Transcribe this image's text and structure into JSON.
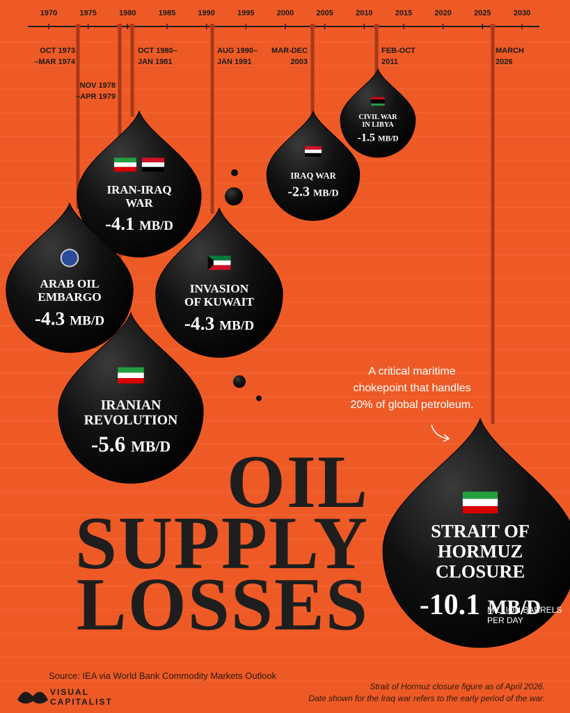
{
  "timeline": {
    "years": [
      1970,
      1975,
      1980,
      1985,
      1990,
      1995,
      2000,
      2005,
      2010,
      2015,
      2020,
      2025,
      2030
    ]
  },
  "events": [
    {
      "date": [
        "OCT 1973",
        "–MAR 1974"
      ],
      "name": [
        "ARAB OIL",
        "EMBARGO"
      ],
      "value": -4.3,
      "unit": "MB/D"
    },
    {
      "date": [
        "NOV 1978",
        "–APR 1979"
      ],
      "name": [
        "IRANIAN",
        "REVOLUTION"
      ],
      "value": -5.6,
      "unit": "MB/D"
    },
    {
      "date": [
        "OCT 1980–",
        "JAN 1981"
      ],
      "name": [
        "IRAN-IRAQ",
        "WAR"
      ],
      "value": -4.1,
      "unit": "MB/D"
    },
    {
      "date": [
        "AUG 1990–",
        "JAN 1991"
      ],
      "name": [
        "INVASION",
        "OF KUWAIT"
      ],
      "value": -4.3,
      "unit": "MB/D"
    },
    {
      "date": [
        "MAR-DEC",
        "2003"
      ],
      "name": [
        "IRAQ WAR"
      ],
      "value": -2.3,
      "unit": "MB/D"
    },
    {
      "date": [
        "FEB-OCT",
        "2011"
      ],
      "name": [
        "CIVIL WAR",
        "IN LIBYA"
      ],
      "value": -1.5,
      "unit": "MB/D"
    },
    {
      "date": [
        "MARCH",
        "2026"
      ],
      "name": [
        "STRAIT OF",
        "HORMUZ",
        "CLOSURE"
      ],
      "value": -10.1,
      "unit": "MB/D"
    }
  ],
  "title": [
    "OIL",
    "SUPPLY",
    "LOSSES"
  ],
  "annotation": [
    "A critical maritime",
    "chokepoint that handles",
    "20% of global petroleum."
  ],
  "unit_note": [
    "MILLION BARRELS",
    "PER DAY"
  ],
  "source": "Source: IEA via World Bank Commodity Markets Outlook",
  "notes": [
    "Strait of Hormuz closure figure as of April 2026.",
    "Date shown for the Iraq war refers to the early period of the war."
  ],
  "brand": [
    "VISUAL",
    "CAPITALIST"
  ]
}
